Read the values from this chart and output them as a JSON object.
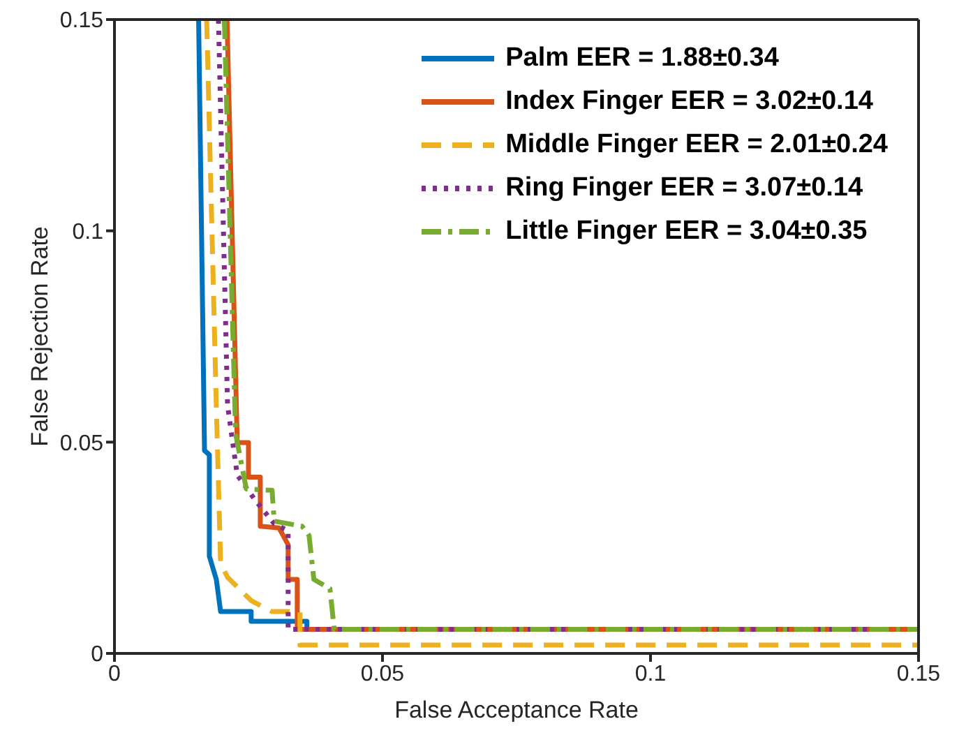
{
  "chart_data": {
    "type": "line",
    "xlabel": "False Acceptance Rate",
    "ylabel": "False Rejection Rate",
    "xlim": [
      0,
      0.15
    ],
    "ylim": [
      0,
      0.15
    ],
    "xticks": [
      0,
      0.05,
      0.1,
      0.15
    ],
    "yticks": [
      0,
      0.05,
      0.1,
      0.15
    ],
    "grid": false,
    "legend": "top right",
    "marker": "none",
    "series": [
      {
        "name": "Palm EER = 1.88±0.34",
        "color": "#0072bd",
        "line_style": "solid",
        "x": [
          0.0157,
          0.0168,
          0.0177,
          0.0177,
          0.019,
          0.0198,
          0.0255,
          0.0255,
          0.0359,
          0.0359
        ],
        "values": [
          0.15,
          0.048,
          0.047,
          0.023,
          0.0175,
          0.0099,
          0.0099,
          0.0076,
          0.0076,
          0.0057
        ]
      },
      {
        "name": "Index Finger EER = 3.02±0.14",
        "color": "#d95319",
        "line_style": "solid",
        "x": [
          0.021,
          0.0229,
          0.025,
          0.025,
          0.0272,
          0.0272,
          0.0307,
          0.0324,
          0.0324,
          0.0341,
          0.0341,
          0.15
        ],
        "values": [
          0.15,
          0.0499,
          0.0499,
          0.0417,
          0.0417,
          0.0301,
          0.0297,
          0.0257,
          0.0175,
          0.0175,
          0.0057,
          0.0057
        ]
      },
      {
        "name": "Middle Finger EER = 2.01±0.24",
        "color": "#edb120",
        "line_style": "dashed",
        "x": [
          0.0172,
          0.019,
          0.0198,
          0.0211,
          0.0255,
          0.0294,
          0.0346,
          0.0346,
          0.15
        ],
        "values": [
          0.15,
          0.0587,
          0.0214,
          0.018,
          0.0125,
          0.0099,
          0.0099,
          0.002,
          0.002
        ]
      },
      {
        "name": "Ring Finger EER = 3.07±0.14",
        "color": "#7e2f8e",
        "line_style": "dotted",
        "x": [
          0.0194,
          0.0211,
          0.0229,
          0.0263,
          0.0298,
          0.0324,
          0.0324,
          0.15
        ],
        "values": [
          0.15,
          0.0587,
          0.0422,
          0.0362,
          0.0307,
          0.029,
          0.0057,
          0.0057
        ]
      },
      {
        "name": "Little Finger EER = 3.04±0.35",
        "color": "#77ac30",
        "line_style": "dashdot",
        "x": [
          0.0205,
          0.0226,
          0.0246,
          0.0294,
          0.0298,
          0.035,
          0.0363,
          0.0372,
          0.0402,
          0.041,
          0.15
        ],
        "values": [
          0.15,
          0.052,
          0.0389,
          0.0386,
          0.0313,
          0.0301,
          0.0279,
          0.0175,
          0.0153,
          0.0057,
          0.0057
        ]
      }
    ]
  }
}
